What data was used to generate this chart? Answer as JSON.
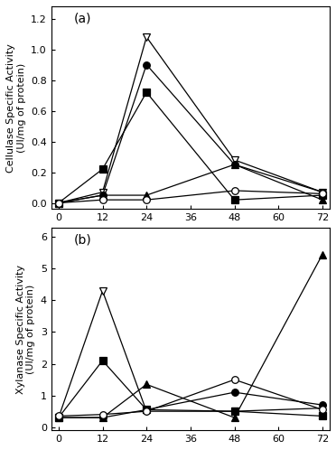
{
  "x": [
    0,
    12,
    24,
    48,
    72
  ],
  "cellulase": {
    "open_triangle": [
      0.0,
      0.07,
      1.08,
      0.28,
      0.07
    ],
    "filled_circle": [
      0.0,
      0.05,
      0.9,
      0.25,
      0.07
    ],
    "filled_square": [
      0.0,
      0.22,
      0.72,
      0.02,
      0.05
    ],
    "filled_triangle": [
      0.0,
      0.05,
      0.05,
      0.25,
      0.02
    ],
    "open_circle": [
      0.0,
      0.02,
      0.02,
      0.08,
      0.06
    ]
  },
  "xylanase": {
    "open_triangle": [
      0.3,
      4.3,
      0.5,
      0.5,
      0.6
    ],
    "filled_square": [
      0.3,
      2.1,
      0.55,
      0.5,
      0.35
    ],
    "filled_triangle": [
      0.3,
      0.3,
      1.35,
      0.3,
      5.45
    ],
    "filled_circle": [
      0.3,
      0.3,
      0.55,
      1.1,
      0.7
    ],
    "open_circle": [
      0.35,
      0.4,
      0.5,
      1.5,
      0.55
    ]
  },
  "ylabel_a": "Cellulase Specific Activity\n(UI/mg of protein)",
  "ylabel_b": "Xylanase Specific Activity\n(UI/mg of protein)",
  "xticks": [
    0,
    12,
    24,
    36,
    48,
    60,
    72
  ],
  "ylim_a": [
    -0.04,
    1.28
  ],
  "ylim_b": [
    -0.1,
    6.3
  ],
  "yticks_a": [
    0.0,
    0.2,
    0.4,
    0.6,
    0.8,
    1.0,
    1.2
  ],
  "yticks_b": [
    0,
    1,
    2,
    3,
    4,
    5,
    6
  ],
  "label_a": "(a)",
  "label_b": "(b)",
  "linecolor": "#000000",
  "markersize": 5.5,
  "linewidth": 0.9
}
